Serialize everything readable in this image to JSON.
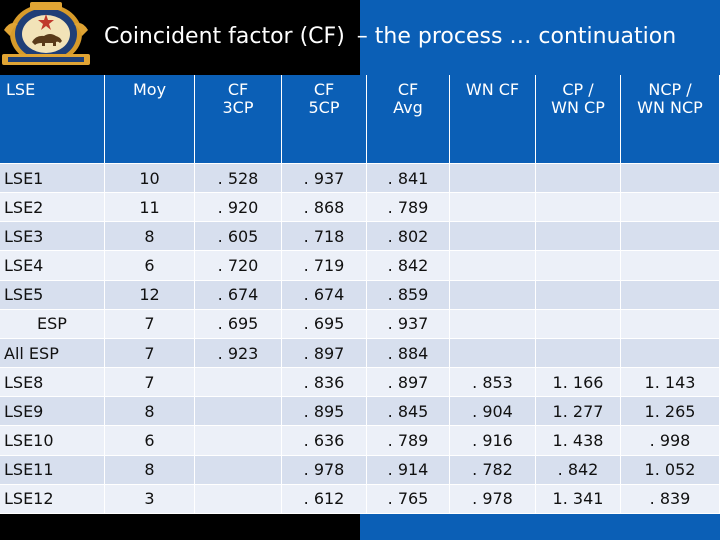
{
  "header": {
    "title": "Coincident factor (CF)",
    "subtitle": "– the process … continuation",
    "logo": "energy-commission-seal"
  },
  "colors": {
    "header_blue": "#0b5fb6",
    "header_black": "#000000",
    "row_dark": "#d7dfee",
    "row_light": "#ecf0f8"
  },
  "table": {
    "headers": [
      {
        "line1": "LSE",
        "line2": ""
      },
      {
        "line1": "Moy",
        "line2": ""
      },
      {
        "line1": "CF",
        "line2": "3CP"
      },
      {
        "line1": "CF",
        "line2": "5CP"
      },
      {
        "line1": "CF",
        "line2": "Avg"
      },
      {
        "line1": "WN CF",
        "line2": ""
      },
      {
        "line1": "CP /",
        "line2": "WN CP"
      },
      {
        "line1": "NCP /",
        "line2": "WN NCP"
      }
    ],
    "rows": [
      {
        "lse": "LSE1",
        "moy": "10",
        "cf3": ". 528",
        "cf5": ". 937",
        "avg": ". 841",
        "wn": "",
        "cp": "",
        "ncp": ""
      },
      {
        "lse": "LSE2",
        "moy": "11",
        "cf3": ". 920",
        "cf5": ". 868",
        "avg": ". 789",
        "wn": "",
        "cp": "",
        "ncp": ""
      },
      {
        "lse": "LSE3",
        "moy": "8",
        "cf3": ". 605",
        "cf5": ". 718",
        "avg": ". 802",
        "wn": "",
        "cp": "",
        "ncp": ""
      },
      {
        "lse": "LSE4",
        "moy": "6",
        "cf3": ". 720",
        "cf5": ". 719",
        "avg": ". 842",
        "wn": "",
        "cp": "",
        "ncp": ""
      },
      {
        "lse": "LSE5",
        "moy": "12",
        "cf3": ". 674",
        "cf5": ". 674",
        "avg": ". 859",
        "wn": "",
        "cp": "",
        "ncp": ""
      },
      {
        "lse": "ESP",
        "moy": "7",
        "cf3": ". 695",
        "cf5": ". 695",
        "avg": ". 937",
        "wn": "",
        "cp": "",
        "ncp": ""
      },
      {
        "lse": "All ESP",
        "moy": "7",
        "cf3": ". 923",
        "cf5": ". 897",
        "avg": ". 884",
        "wn": "",
        "cp": "",
        "ncp": ""
      },
      {
        "lse": "LSE8",
        "moy": "7",
        "cf3": "",
        "cf5": ". 836",
        "avg": ". 897",
        "wn": ". 853",
        "cp": "1. 166",
        "ncp": "1. 143"
      },
      {
        "lse": "LSE9",
        "moy": "8",
        "cf3": "",
        "cf5": ". 895",
        "avg": ". 845",
        "wn": ". 904",
        "cp": "1. 277",
        "ncp": "1. 265"
      },
      {
        "lse": "LSE10",
        "moy": "6",
        "cf3": "",
        "cf5": ". 636",
        "avg": ". 789",
        "wn": ". 916",
        "cp": "1. 438",
        "ncp": ". 998"
      },
      {
        "lse": "LSE11",
        "moy": "8",
        "cf3": "",
        "cf5": ". 978",
        "avg": ". 914",
        "wn": ". 782",
        "cp": ". 842",
        "ncp": "1. 052"
      },
      {
        "lse": "LSE12",
        "moy": "3",
        "cf3": "",
        "cf5": ". 612",
        "avg": ". 765",
        "wn": ". 978",
        "cp": "1. 341",
        "ncp": ". 839"
      }
    ]
  }
}
